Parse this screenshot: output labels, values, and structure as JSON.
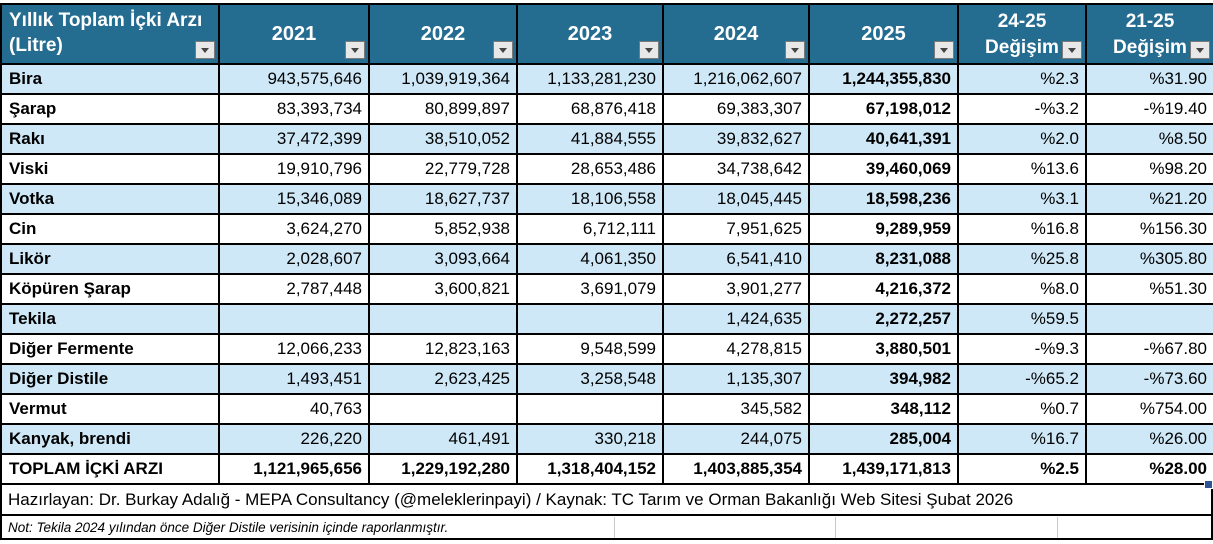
{
  "app": {
    "kind": "spreadsheet-table"
  },
  "colors": {
    "header_bg": "#256C91",
    "row_alt_bg": "#CFE8F7",
    "row_bg": "#FFFFFF",
    "border": "#000000",
    "filter_button_bg": "#E8E8E8",
    "fill_handle": "#2F5597"
  },
  "table": {
    "corner": {
      "line1": "Yıllık Toplam İçki Arzı",
      "line2": "(Litre)"
    },
    "columns": [
      {
        "label": "2021"
      },
      {
        "label": "2022"
      },
      {
        "label": "2023"
      },
      {
        "label": "2024"
      },
      {
        "label": "2025"
      },
      {
        "label": "24-25",
        "label2": "Değişim"
      },
      {
        "label": "21-25",
        "label2": "Değişim"
      }
    ],
    "rows": [
      {
        "label": "Bira",
        "values": [
          "943,575,646",
          "1,039,919,364",
          "1,133,281,230",
          "1,216,062,607",
          "1,244,355,830",
          "%2.3",
          "%31.90"
        ]
      },
      {
        "label": "Şarap",
        "values": [
          "83,393,734",
          "80,899,897",
          "68,876,418",
          "69,383,307",
          "67,198,012",
          "-%3.2",
          "-%19.40"
        ]
      },
      {
        "label": "Rakı",
        "values": [
          "37,472,399",
          "38,510,052",
          "41,884,555",
          "39,832,627",
          "40,641,391",
          "%2.0",
          "%8.50"
        ]
      },
      {
        "label": "Viski",
        "values": [
          "19,910,796",
          "22,779,728",
          "28,653,486",
          "34,738,642",
          "39,460,069",
          "%13.6",
          "%98.20"
        ]
      },
      {
        "label": "Votka",
        "values": [
          "15,346,089",
          "18,627,737",
          "18,106,558",
          "18,045,445",
          "18,598,236",
          "%3.1",
          "%21.20"
        ]
      },
      {
        "label": "Cin",
        "values": [
          "3,624,270",
          "5,852,938",
          "6,712,111",
          "7,951,625",
          "9,289,959",
          "%16.8",
          "%156.30"
        ]
      },
      {
        "label": "Likör",
        "values": [
          "2,028,607",
          "3,093,664",
          "4,061,350",
          "6,541,410",
          "8,231,088",
          "%25.8",
          "%305.80"
        ]
      },
      {
        "label": "Köpüren Şarap",
        "values": [
          "2,787,448",
          "3,600,821",
          "3,691,079",
          "3,901,277",
          "4,216,372",
          "%8.0",
          "%51.30"
        ]
      },
      {
        "label": "Tekila",
        "values": [
          "",
          "",
          "",
          "1,424,635",
          "2,272,257",
          "%59.5",
          ""
        ]
      },
      {
        "label": "Diğer Fermente",
        "values": [
          "12,066,233",
          "12,823,163",
          "9,548,599",
          "4,278,815",
          "3,880,501",
          "-%9.3",
          "-%67.80"
        ]
      },
      {
        "label": "Diğer Distile",
        "values": [
          "1,493,451",
          "2,623,425",
          "3,258,548",
          "1,135,307",
          "394,982",
          "-%65.2",
          "-%73.60"
        ]
      },
      {
        "label": "Vermut",
        "values": [
          "40,763",
          "",
          "",
          "345,582",
          "348,112",
          "%0.7",
          "%754.00"
        ]
      },
      {
        "label": "Kanyak, brendi",
        "values": [
          "226,220",
          "461,491",
          "330,218",
          "244,075",
          "285,004",
          "%16.7",
          "%26.00"
        ]
      }
    ],
    "total": {
      "label": "TOPLAM İÇKİ ARZI",
      "values": [
        "1,121,965,656",
        "1,229,192,280",
        "1,318,404,152",
        "1,403,885,354",
        "1,439,171,813",
        "%2.5",
        "%28.00"
      ]
    }
  },
  "footer": {
    "credit": "Hazırlayan: Dr. Burkay Adalığ - MEPA Consultancy (@meleklerinpayi) / Kaynak: TC Tarım ve Orman Bakanlığı Web Sitesi Şubat 2026",
    "note": "Not: Tekila 2024 yılından önce Diğer Distile verisinin içinde raporlanmıştır."
  }
}
